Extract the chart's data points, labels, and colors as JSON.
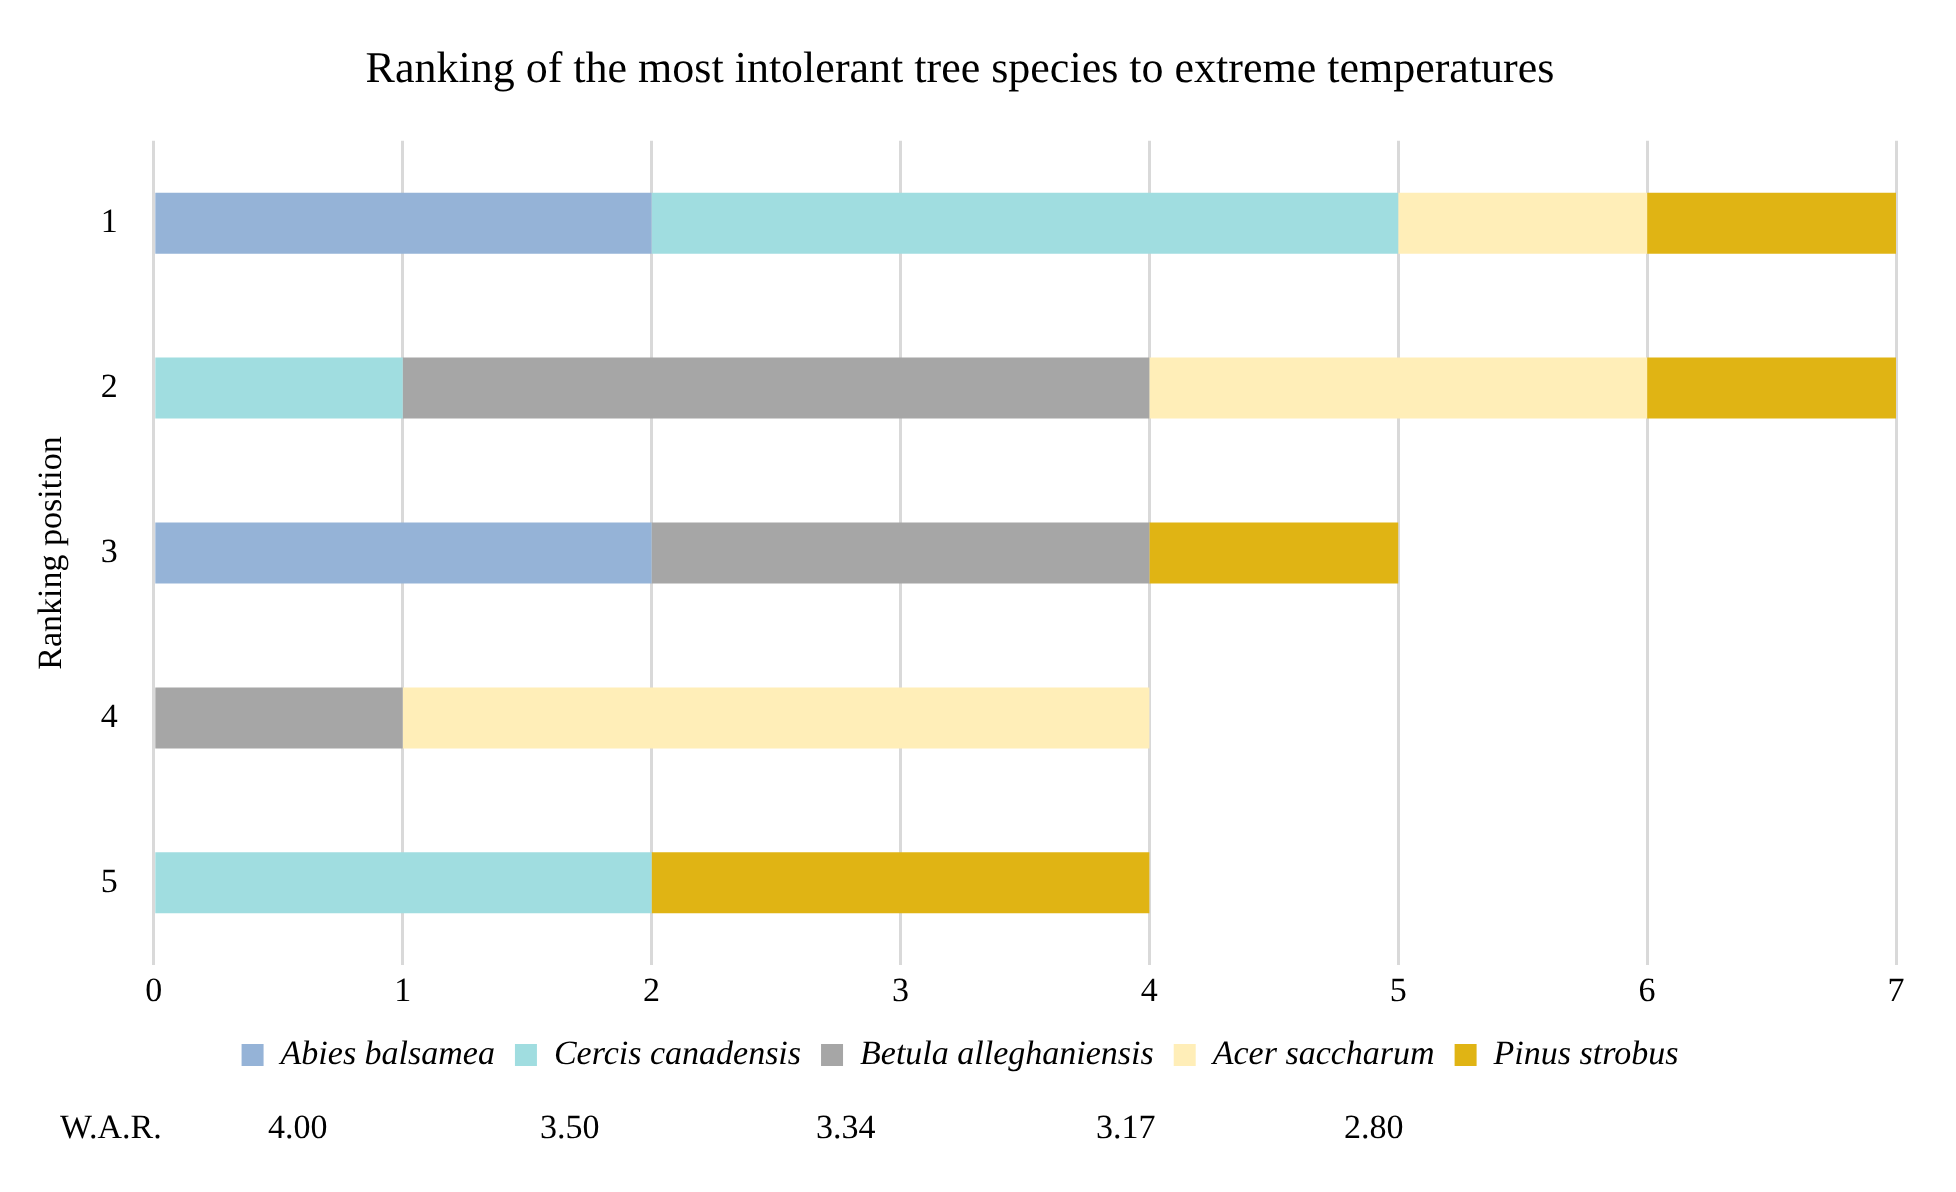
{
  "chart_data": {
    "type": "bar",
    "orientation": "horizontal",
    "stacked": true,
    "title": "Ranking of the most intolerant tree species to extreme temperatures",
    "ylabel": "Ranking position",
    "categories": [
      "1",
      "2",
      "3",
      "4",
      "5"
    ],
    "series": [
      {
        "name": "Abies balsamea",
        "color": "#95b3d7",
        "values": [
          2,
          null,
          2,
          null,
          null
        ]
      },
      {
        "name": "Cercis canadensis",
        "color": "#a0dde0",
        "values": [
          3,
          1,
          null,
          null,
          2
        ]
      },
      {
        "name": "Betula alleghaniensis",
        "color": "#a6a6a6",
        "values": [
          null,
          3,
          2,
          1,
          null
        ]
      },
      {
        "name": "Acer saccharum",
        "color": "#ffeeb8",
        "values": [
          1,
          2,
          null,
          3,
          null
        ]
      },
      {
        "name": "Pinus strobus",
        "color": "#e0b414",
        "values": [
          1,
          1,
          1,
          null,
          2
        ]
      }
    ],
    "xlim": [
      0,
      7
    ],
    "xticks": [
      0,
      1,
      2,
      3,
      4,
      5,
      6,
      7
    ],
    "grid": "x",
    "legend": "bottom",
    "annotations": [
      "W.A.R.",
      "4.00",
      "3.50",
      "3.34",
      "3.17",
      "2.80"
    ]
  }
}
